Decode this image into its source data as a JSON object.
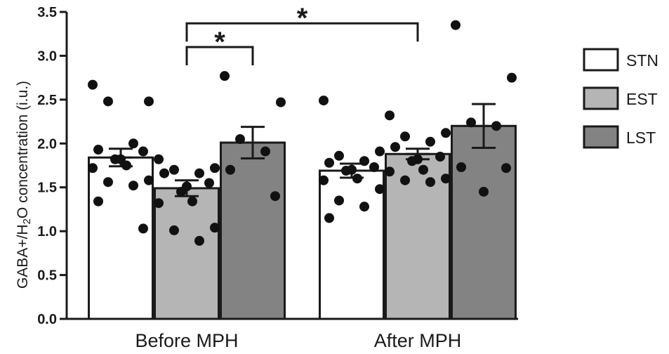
{
  "chart_data": {
    "type": "bar",
    "title": "",
    "ylabel_parts": [
      "GABA+/H",
      "2",
      "O concentration  (i.u.)"
    ],
    "ylim": [
      0,
      3.5
    ],
    "yticks": [
      "0.0",
      "0.5",
      "1.0",
      "1.5",
      "2.0",
      "2.5",
      "3.0",
      "3.5"
    ],
    "yticks_values": [
      0,
      0.5,
      1.0,
      1.5,
      2.0,
      2.5,
      3.0,
      3.5
    ],
    "categories": [
      "Before MPH",
      "After MPH"
    ],
    "series": [
      {
        "name": "STN",
        "color": "#ffffff",
        "values": [
          1.84,
          1.69
        ],
        "sem": [
          0.1,
          0.08
        ],
        "points": [
          [
            2.67,
            2.48,
            2.48,
            2.0,
            1.93,
            1.91,
            1.82,
            1.82,
            1.75,
            1.72,
            1.58,
            1.56,
            1.52,
            1.34,
            1.03
          ],
          [
            2.49,
            1.91,
            1.86,
            1.8,
            1.78,
            1.73,
            1.7,
            1.69,
            1.6,
            1.58,
            1.48,
            1.35,
            1.28,
            1.15
          ]
        ]
      },
      {
        "name": "EST",
        "color": "#b5b5b5",
        "values": [
          1.49,
          1.88
        ],
        "sem": [
          0.09,
          0.06
        ],
        "points": [
          [
            1.82,
            1.72,
            1.7,
            1.66,
            1.66,
            1.55,
            1.51,
            1.45,
            1.34,
            1.32,
            1.04,
            1.01,
            0.89
          ],
          [
            2.32,
            2.12,
            2.08,
            2.02,
            1.96,
            1.85,
            1.82,
            1.8,
            1.7,
            1.68,
            1.6,
            1.58,
            1.56
          ]
        ]
      },
      {
        "name": "LST",
        "color": "#838383",
        "values": [
          2.01,
          2.2
        ],
        "sem": [
          0.18,
          0.25
        ],
        "points": [
          [
            2.77,
            2.47,
            2.05,
            1.91,
            1.7,
            1.4
          ],
          [
            3.35,
            2.75,
            2.24,
            2.2,
            1.73,
            1.72,
            1.45
          ]
        ]
      }
    ],
    "significance": [
      {
        "from": [
          "Before MPH",
          "EST"
        ],
        "to": [
          "Before MPH",
          "LST"
        ],
        "label": "*",
        "height": 3.1
      },
      {
        "from": [
          "Before MPH",
          "EST"
        ],
        "to": [
          "After MPH",
          "EST"
        ],
        "label": "*",
        "height": 3.37
      }
    ],
    "legend_position": "right",
    "grid": false
  }
}
